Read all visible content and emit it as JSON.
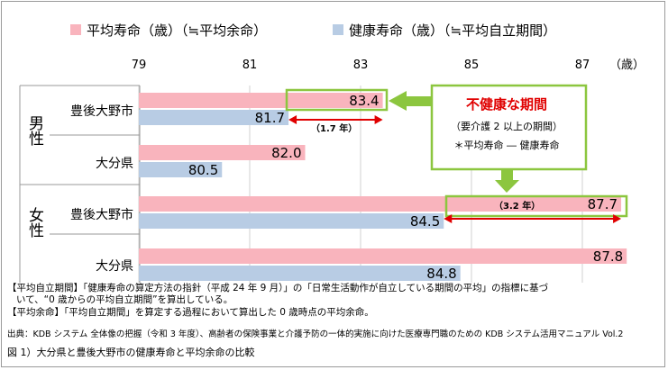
{
  "legend": {
    "series1": "平均寿命（歳）（≒平均余命）",
    "series2": "健康寿命（歳）（≒平均自立期間）"
  },
  "chart_data": {
    "type": "bar",
    "orientation": "horizontal",
    "x_unit": "（歳）",
    "xlim": [
      79,
      88
    ],
    "xticks": [
      "79",
      "81",
      "83",
      "85",
      "87"
    ],
    "groups": [
      {
        "label": "男性",
        "rows": [
          "豊後大野市",
          "大分県"
        ]
      },
      {
        "label": "女性",
        "rows": [
          "豊後大野市",
          "大分県"
        ]
      }
    ],
    "categories": [
      "豊後大野市",
      "大分県",
      "豊後大野市",
      "大分県"
    ],
    "series": [
      {
        "name": "平均寿命（歳）（≒平均余命）",
        "color": "#f9b4bd",
        "values": [
          83.4,
          82.0,
          87.7,
          87.8
        ]
      },
      {
        "name": "健康寿命（歳）（≒平均自立期間）",
        "color": "#b8cce4",
        "values": [
          81.7,
          80.5,
          84.5,
          84.8
        ]
      }
    ],
    "annotations": {
      "gap_male": "（1.7 年）",
      "gap_female": "（3.2 年）",
      "callout_title": "不健康な期間",
      "callout_line1": "（要介護 2 以上の期間）",
      "callout_line2": "＊平均寿命 ― 健康寿命"
    },
    "colors": {
      "highlight": "#8cc63f",
      "arrow": "#e00000",
      "title_red": "#e00000"
    }
  },
  "notes": [
    "【平均自立期間】「健康寿命の算定方法の指針（平成 24 年 9 月）」の「日常生活動作が自立している期間の平均」の指標に基づ",
    "いて、“0 歳からの平均自立期間”を算出している。",
    "【平均余命】「平均自立期間」を算定する過程において算出した 0 歳時点の平均余命。"
  ],
  "source": "出典：KDB システム 全体像の把握（令和 3 年度）、高齢者の保険事業と介護予防の一体的実施に向けた医療専門職のための KDB システム活用マニュアル Vol.2",
  "caption": "図 1）大分県と豊後大野市の健康寿命と平均余命の比較"
}
